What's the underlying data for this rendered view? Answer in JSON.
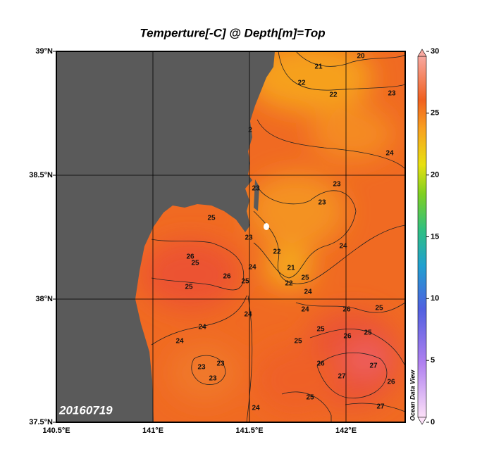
{
  "title": "Temperture[-C] @ Depth[m]=Top",
  "map": {
    "lat_labels": [
      "39°N",
      "38.5°N",
      "38°N",
      "37.5°N"
    ],
    "lon_labels": [
      "140.5°E",
      "141°E",
      "141.5°E",
      "142°E"
    ],
    "date": "20160719",
    "credit": "Ocean Data View",
    "contour_labels": [
      "21",
      "20",
      "22",
      "23",
      "22",
      "2",
      "24",
      "23",
      "23",
      "23",
      "25",
      "24",
      "23",
      "22",
      "26",
      "25",
      "21",
      "24",
      "26",
      "25",
      "22",
      "25",
      "25",
      "24",
      "24",
      "24",
      "26",
      "25",
      "24",
      "25",
      "26",
      "25",
      "24",
      "25",
      "23",
      "23",
      "26",
      "27",
      "23",
      "27",
      "26",
      "25",
      "27",
      "24"
    ],
    "colorbar": {
      "ticks": [
        0,
        5,
        10,
        15,
        20,
        25,
        30
      ]
    }
  }
}
